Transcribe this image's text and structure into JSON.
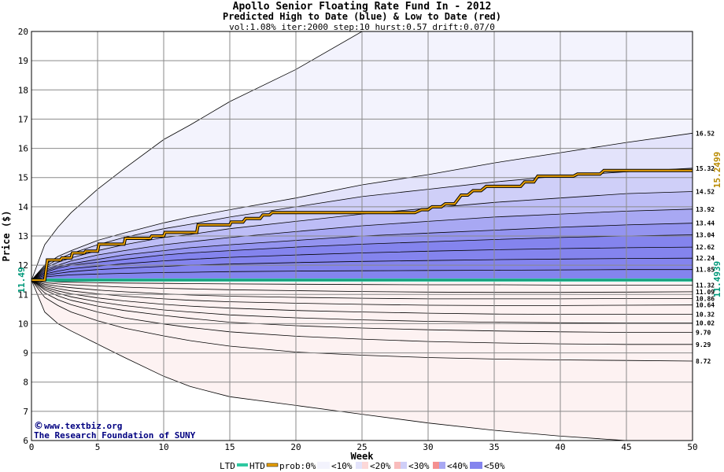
{
  "chart_data": {
    "type": "area",
    "title": "Apollo Senior Floating Rate Fund In - 2012",
    "subtitle": "Predicted High to Date (blue) &  Low to Date (red)",
    "params": "vol:1.08% iter:2000 step:10 hurst:0.57 drift:0.07/0",
    "xlabel": "Week",
    "ylabel": "Price ($)",
    "xlim": [
      0,
      50
    ],
    "ylim": [
      6,
      20
    ],
    "x_ticks": [
      0,
      5,
      10,
      15,
      20,
      25,
      30,
      35,
      40,
      45,
      50
    ],
    "y_ticks": [
      6,
      7,
      8,
      9,
      10,
      11,
      12,
      13,
      14,
      15,
      16,
      17,
      18,
      19,
      20
    ],
    "grid": true,
    "start_price": "11.49",
    "x": [
      0,
      1,
      2,
      3,
      5,
      7,
      10,
      12,
      15,
      20,
      25,
      30,
      35,
      40,
      45,
      50
    ],
    "blue_bands": [
      {
        "values": [
          11.49,
          12.7,
          13.3,
          13.8,
          14.6,
          15.3,
          16.3,
          16.8,
          17.6,
          18.7,
          20.0,
          20.0,
          20.0,
          20.0,
          20.0,
          20.0
        ]
      },
      {
        "values": [
          11.49,
          12.0,
          12.3,
          12.5,
          12.85,
          13.1,
          13.45,
          13.65,
          13.9,
          14.3,
          14.75,
          15.1,
          15.5,
          15.85,
          16.2,
          16.52
        ]
      },
      {
        "values": [
          11.49,
          11.95,
          12.2,
          12.4,
          12.7,
          12.95,
          13.25,
          13.4,
          13.65,
          14.0,
          14.35,
          14.6,
          14.85,
          15.05,
          15.2,
          15.32
        ]
      },
      {
        "values": [
          11.49,
          11.9,
          12.1,
          12.25,
          12.5,
          12.7,
          12.95,
          13.05,
          13.25,
          13.5,
          13.75,
          13.95,
          14.15,
          14.3,
          14.45,
          14.52
        ]
      },
      {
        "values": [
          11.49,
          11.85,
          12.0,
          12.15,
          12.35,
          12.5,
          12.7,
          12.8,
          12.95,
          13.15,
          13.35,
          13.5,
          13.65,
          13.75,
          13.85,
          13.92
        ]
      },
      {
        "values": [
          11.49,
          11.8,
          11.95,
          12.05,
          12.2,
          12.35,
          12.5,
          12.6,
          12.7,
          12.85,
          13.0,
          13.1,
          13.2,
          13.3,
          13.38,
          13.44
        ]
      },
      {
        "values": [
          11.49,
          11.75,
          11.9,
          12.0,
          12.1,
          12.2,
          12.35,
          12.42,
          12.5,
          12.62,
          12.72,
          12.8,
          12.88,
          12.95,
          13.0,
          13.04
        ]
      },
      {
        "values": [
          11.49,
          11.7,
          11.8,
          11.88,
          11.97,
          12.05,
          12.15,
          12.2,
          12.27,
          12.35,
          12.42,
          12.48,
          12.53,
          12.57,
          12.6,
          12.62
        ]
      },
      {
        "values": [
          11.49,
          11.65,
          11.72,
          11.78,
          11.85,
          11.9,
          11.96,
          12.0,
          12.04,
          12.09,
          12.13,
          12.16,
          12.19,
          12.21,
          12.23,
          12.24
        ]
      },
      {
        "values": [
          11.49,
          11.6,
          11.64,
          11.67,
          11.7,
          11.72,
          11.75,
          11.76,
          11.78,
          11.8,
          11.81,
          11.82,
          11.83,
          11.84,
          11.85,
          11.85
        ]
      }
    ],
    "red_bands": [
      {
        "values": [
          11.49,
          11.45,
          11.43,
          11.42,
          11.4,
          11.39,
          11.38,
          11.37,
          11.36,
          11.35,
          11.34,
          11.33,
          11.33,
          11.32,
          11.32,
          11.32
        ]
      },
      {
        "values": [
          11.49,
          11.4,
          11.36,
          11.33,
          11.29,
          11.25,
          11.21,
          11.19,
          11.16,
          11.13,
          11.1,
          11.08,
          11.07,
          11.07,
          11.08,
          11.09
        ]
      },
      {
        "values": [
          11.49,
          11.35,
          11.28,
          11.23,
          11.15,
          11.09,
          11.02,
          10.98,
          10.94,
          10.9,
          10.87,
          10.85,
          10.85,
          10.85,
          10.86,
          10.86
        ]
      },
      {
        "values": [
          11.49,
          11.3,
          11.2,
          11.12,
          11.02,
          10.94,
          10.85,
          10.8,
          10.75,
          10.7,
          10.66,
          10.63,
          10.62,
          10.62,
          10.63,
          10.64
        ]
      },
      {
        "values": [
          11.49,
          11.25,
          11.12,
          11.02,
          10.88,
          10.78,
          10.66,
          10.6,
          10.53,
          10.45,
          10.4,
          10.36,
          10.33,
          10.32,
          10.32,
          10.32
        ]
      },
      {
        "values": [
          11.49,
          11.2,
          11.04,
          10.92,
          10.75,
          10.62,
          10.47,
          10.4,
          10.3,
          10.2,
          10.13,
          10.08,
          10.05,
          10.03,
          10.02,
          10.02
        ]
      },
      {
        "values": [
          11.49,
          11.15,
          10.95,
          10.8,
          10.6,
          10.45,
          10.28,
          10.18,
          10.05,
          9.93,
          9.85,
          9.79,
          9.75,
          9.72,
          9.7,
          9.7
        ]
      },
      {
        "values": [
          11.49,
          11.05,
          10.82,
          10.65,
          10.4,
          10.2,
          9.99,
          9.87,
          9.72,
          9.57,
          9.47,
          9.39,
          9.34,
          9.31,
          9.29,
          9.29
        ]
      },
      {
        "values": [
          11.49,
          10.9,
          10.62,
          10.4,
          10.1,
          9.85,
          9.58,
          9.42,
          9.23,
          9.03,
          8.92,
          8.84,
          8.79,
          8.76,
          8.74,
          8.72
        ]
      },
      {
        "values": [
          11.49,
          10.4,
          10.0,
          9.75,
          9.3,
          8.85,
          8.2,
          7.85,
          7.5,
          7.2,
          6.9,
          6.6,
          6.35,
          6.15,
          6.0,
          6.0
        ]
      }
    ],
    "blue_end_labels": [
      "16.52",
      "15.32",
      "14.52",
      "13.92",
      "13.44",
      "13.04",
      "12.62",
      "12.24",
      "11.85"
    ],
    "red_end_labels": [
      "11.32",
      "11.09",
      "10.86",
      "10.64",
      "10.32",
      "10.02",
      "9.70",
      "9.29",
      "8.72"
    ],
    "end_label_values": [
      16.52,
      15.32,
      14.52,
      13.92,
      13.44,
      13.04,
      12.62,
      12.24,
      11.85,
      11.32,
      11.09,
      10.86,
      10.64,
      10.32,
      10.02,
      9.7,
      9.29,
      8.72
    ],
    "htd_series": {
      "name": "HTD",
      "x": [
        0,
        1,
        1.2,
        2.2,
        2.3,
        3,
        3.1,
        4,
        4.1,
        5,
        5.1,
        7,
        7.1,
        9,
        9.1,
        10,
        10.1,
        12.5,
        12.6,
        15,
        15.1,
        16,
        16.2,
        17.3,
        17.5,
        18,
        18.2,
        29,
        29.5,
        30,
        30.3,
        31,
        31.3,
        32,
        32.5,
        33,
        33.4,
        34,
        34.4,
        37,
        37.3,
        38,
        38.3,
        41,
        41.3,
        43,
        43.3,
        50
      ],
      "values": [
        11.49,
        11.49,
        12.18,
        12.18,
        12.25,
        12.25,
        12.42,
        12.42,
        12.48,
        12.48,
        12.72,
        12.72,
        12.92,
        12.92,
        13.0,
        13.0,
        13.12,
        13.12,
        13.38,
        13.38,
        13.48,
        13.48,
        13.6,
        13.6,
        13.72,
        13.72,
        13.8,
        13.8,
        13.9,
        13.9,
        14.0,
        14.0,
        14.1,
        14.1,
        14.4,
        14.4,
        14.55,
        14.55,
        14.7,
        14.7,
        14.85,
        14.85,
        15.05,
        15.05,
        15.12,
        15.12,
        15.24,
        15.24
      ]
    },
    "htd_end_label": "15.2499",
    "ltd_end_label": "11.4939",
    "ltd_value": 11.4939,
    "legend": {
      "placement": "bottom",
      "ltd": "LTD",
      "htd": "HTD",
      "prob": "prob:0%",
      "items": [
        "<10%",
        "<20%",
        "<30%",
        "<40%",
        "<50%"
      ]
    },
    "credit_line1": "www.textbiz.org",
    "credit_line2": "The Research Foundation of SUNY",
    "colors": {
      "blue_fills": [
        "#f3f3fd",
        "#e3e3fb",
        "#cfcff8",
        "#bdbdf6",
        "#a8a8f3",
        "#9494f0",
        "#8484ee",
        "#8484ee",
        "#8484ee",
        "#8484ee"
      ],
      "red_fills": [
        "#f9c8c8",
        "#f7a6a6",
        "#f49090",
        "#f28080",
        "#f27878",
        "#f49090",
        "#f7a6a6",
        "#f9bcbc",
        "#fcd8d8",
        "#fdf2f2"
      ],
      "htd_line": "#e8a000",
      "ltd_line": "#2ec8a0",
      "htd_label": "#b88a00",
      "ltd_label": "#00997a",
      "credit": "#000080"
    }
  }
}
